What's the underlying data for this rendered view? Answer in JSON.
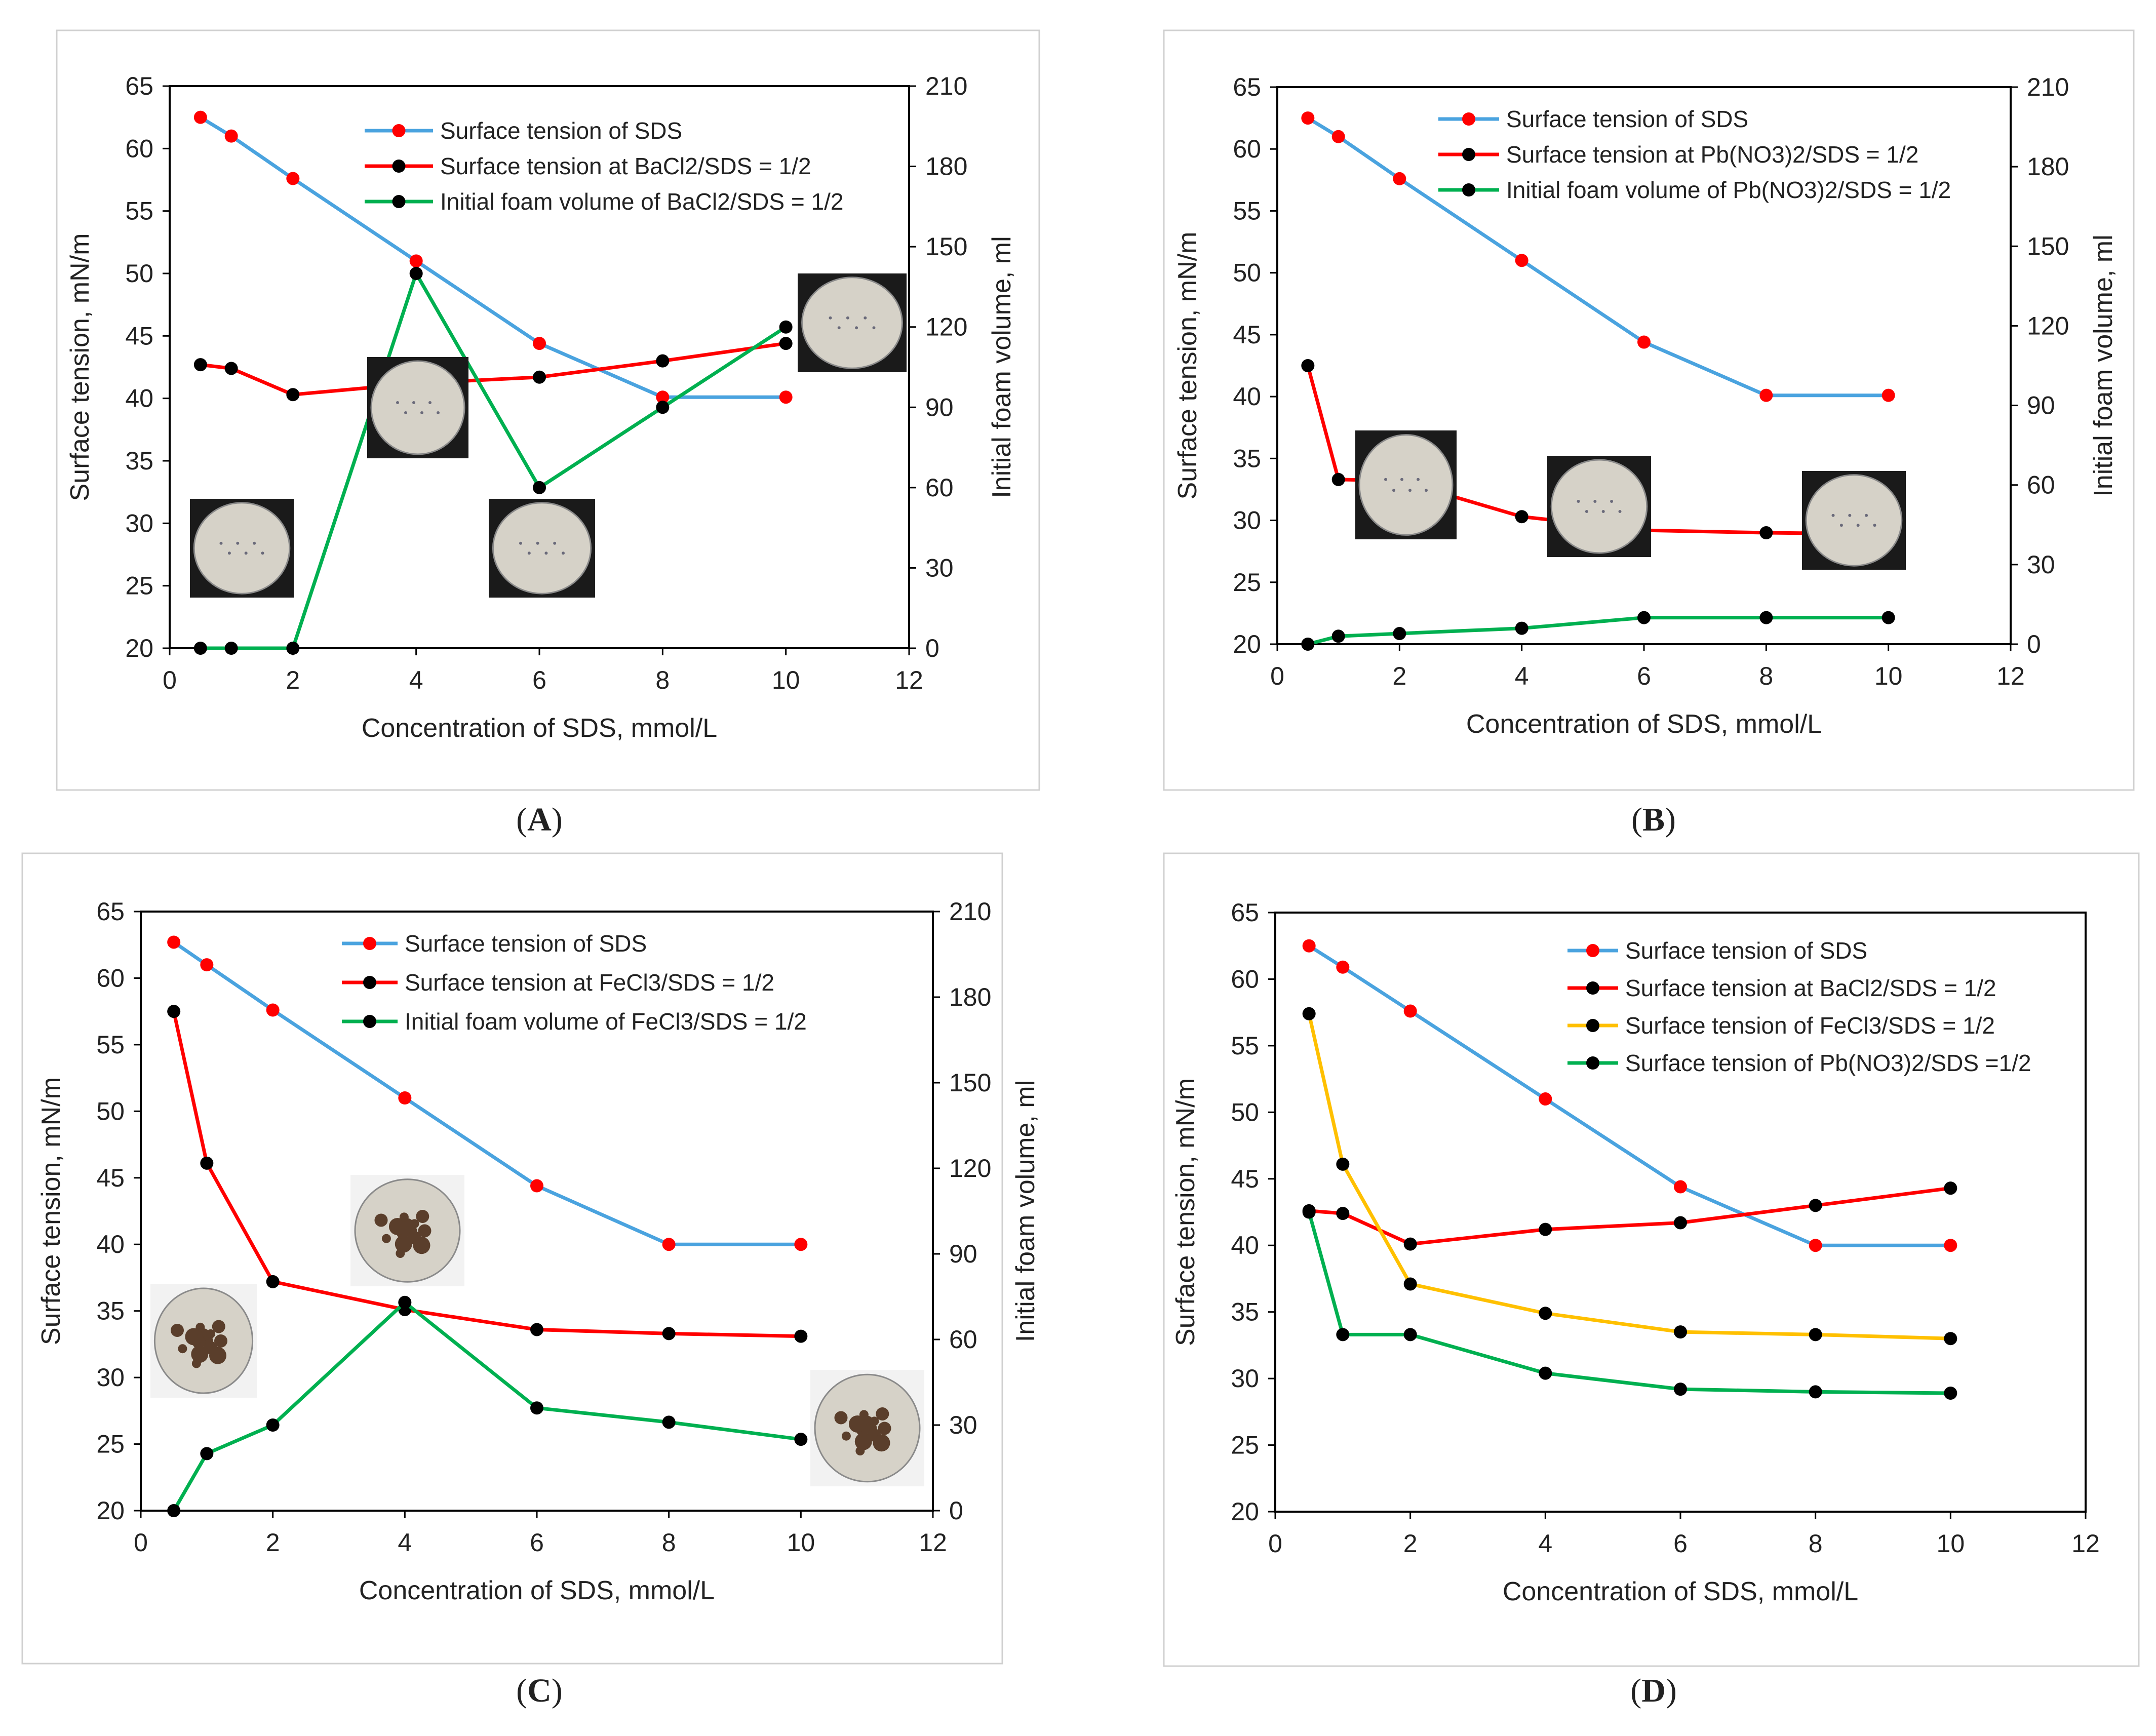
{
  "colors": {
    "blue": "#4aa3df",
    "red": "#ff0000",
    "green": "#00b050",
    "yellow": "#ffc000",
    "black": "#000000",
    "frame": "#d0d0d0"
  },
  "chart_data": [
    {
      "type": "line",
      "panel_label": "A",
      "xlabel": "Concentration of SDS, mmol/L",
      "ylabel": "Surface tension, mN/m",
      "y2label": "Initial foam volume, ml",
      "xlim": [
        0,
        12
      ],
      "ylim": [
        20,
        65
      ],
      "y2lim": [
        0,
        210
      ],
      "xticks": [
        "0",
        "2",
        "4",
        "6",
        "8",
        "10",
        "12"
      ],
      "yticks": [
        "20",
        "25",
        "30",
        "35",
        "40",
        "45",
        "50",
        "55",
        "60",
        "65"
      ],
      "y2ticks": [
        "0",
        "30",
        "60",
        "90",
        "120",
        "150",
        "180",
        "210"
      ],
      "legend_position": "top-center",
      "series": [
        {
          "name": "Surface tension of SDS",
          "axis": "left",
          "line_color": "#4aa3df",
          "marker_color": "#ff0000",
          "x": [
            0.5,
            1,
            2,
            4,
            6,
            8,
            10
          ],
          "y": [
            62.5,
            61.0,
            57.6,
            51.0,
            44.4,
            40.1,
            40.1
          ]
        },
        {
          "name": "Surface tension at BaCl2/SDS = 1/2",
          "axis": "left",
          "line_color": "#ff0000",
          "marker_color": "#000000",
          "x": [
            0.5,
            1,
            2,
            4,
            6,
            8,
            10
          ],
          "y": [
            42.7,
            42.4,
            40.3,
            41.2,
            41.7,
            43.0,
            44.4
          ]
        },
        {
          "name": "Initial foam volume of BaCl2/SDS = 1/2",
          "axis": "right",
          "line_color": "#00b050",
          "marker_color": "#000000",
          "x": [
            0.5,
            1,
            2,
            4,
            6,
            8,
            10
          ],
          "y": [
            0,
            0,
            0,
            140,
            60,
            90,
            120
          ]
        }
      ]
    },
    {
      "type": "line",
      "panel_label": "B",
      "xlabel": "Concentration of SDS, mmol/L",
      "ylabel": "Surface tension, mN/m",
      "y2label": "Initial foam volume, ml",
      "xlim": [
        0,
        12
      ],
      "ylim": [
        20,
        65
      ],
      "y2lim": [
        0,
        210
      ],
      "xticks": [
        "0",
        "2",
        "4",
        "6",
        "8",
        "10",
        "12"
      ],
      "yticks": [
        "20",
        "25",
        "30",
        "35",
        "40",
        "45",
        "50",
        "55",
        "60",
        "65"
      ],
      "y2ticks": [
        "0",
        "30",
        "60",
        "90",
        "120",
        "150",
        "180",
        "210"
      ],
      "legend_position": "top-center",
      "series": [
        {
          "name": "Surface tension of SDS",
          "axis": "left",
          "line_color": "#4aa3df",
          "marker_color": "#ff0000",
          "x": [
            0.5,
            1,
            2,
            4,
            6,
            8,
            10
          ],
          "y": [
            62.5,
            61.0,
            57.6,
            51.0,
            44.4,
            40.1,
            40.1
          ]
        },
        {
          "name": "Surface tension at Pb(NO3)2/SDS = 1/2",
          "axis": "left",
          "line_color": "#ff0000",
          "marker_color": "#000000",
          "x": [
            0.5,
            1,
            2,
            4,
            6,
            8,
            10
          ],
          "y": [
            42.5,
            33.3,
            33.2,
            30.3,
            29.2,
            29.0,
            28.9
          ]
        },
        {
          "name": "Initial foam volume of Pb(NO3)2/SDS = 1/2",
          "axis": "right",
          "line_color": "#00b050",
          "marker_color": "#000000",
          "x": [
            0.5,
            1,
            2,
            4,
            6,
            8,
            10
          ],
          "y": [
            0,
            3,
            4,
            6,
            10,
            10,
            10
          ]
        }
      ]
    },
    {
      "type": "line",
      "panel_label": "C",
      "xlabel": "Concentration of SDS, mmol/L",
      "ylabel": "Surface tension, mN/m",
      "y2label": "Initial foam volume, ml",
      "xlim": [
        0,
        12
      ],
      "ylim": [
        20,
        65
      ],
      "y2lim": [
        0,
        210
      ],
      "xticks": [
        "0",
        "2",
        "4",
        "6",
        "8",
        "10",
        "12"
      ],
      "yticks": [
        "20",
        "25",
        "30",
        "35",
        "40",
        "45",
        "50",
        "55",
        "60",
        "65"
      ],
      "y2ticks": [
        "0",
        "30",
        "60",
        "90",
        "120",
        "150",
        "180",
        "210"
      ],
      "legend_position": "top-center",
      "series": [
        {
          "name": "Surface tension of SDS",
          "axis": "left",
          "line_color": "#4aa3df",
          "marker_color": "#ff0000",
          "x": [
            0.5,
            1,
            2,
            4,
            6,
            8,
            10
          ],
          "y": [
            62.7,
            61.0,
            57.6,
            51.0,
            44.4,
            40.0,
            40.0
          ]
        },
        {
          "name": "Surface tension at FeCl3/SDS = 1/2",
          "axis": "left",
          "line_color": "#ff0000",
          "marker_color": "#000000",
          "x": [
            0.5,
            1,
            2,
            4,
            6,
            8,
            10
          ],
          "y": [
            57.5,
            46.1,
            37.2,
            35.1,
            33.6,
            33.3,
            33.1
          ]
        },
        {
          "name": "Initial foam volume of FeCl3/SDS = 1/2",
          "axis": "right",
          "line_color": "#00b050",
          "marker_color": "#000000",
          "x": [
            0.5,
            1,
            2,
            4,
            6,
            8,
            10
          ],
          "y": [
            0,
            20,
            30,
            73,
            36,
            31,
            25
          ]
        }
      ]
    },
    {
      "type": "line",
      "panel_label": "D",
      "xlabel": "Concentration of SDS, mmol/L",
      "ylabel": "Surface tension, mN/m",
      "xlim": [
        0,
        12
      ],
      "ylim": [
        20,
        65
      ],
      "xticks": [
        "0",
        "2",
        "4",
        "6",
        "8",
        "10",
        "12"
      ],
      "yticks": [
        "20",
        "25",
        "30",
        "35",
        "40",
        "45",
        "50",
        "55",
        "60",
        "65"
      ],
      "legend_position": "top-center",
      "series": [
        {
          "name": "Surface tension of SDS",
          "axis": "left",
          "line_color": "#4aa3df",
          "marker_color": "#ff0000",
          "x": [
            0.5,
            1,
            2,
            4,
            6,
            8,
            10
          ],
          "y": [
            62.5,
            60.9,
            57.6,
            51.0,
            44.4,
            40.0,
            40.0
          ]
        },
        {
          "name": "Surface tension at BaCl2/SDS = 1/2",
          "axis": "left",
          "line_color": "#ff0000",
          "marker_color": "#000000",
          "x": [
            0.5,
            1,
            2,
            4,
            6,
            8,
            10
          ],
          "y": [
            42.6,
            42.4,
            40.1,
            41.2,
            41.7,
            43.0,
            44.3
          ]
        },
        {
          "name": "Surface tension of FeCl3/SDS = 1/2",
          "axis": "left",
          "line_color": "#ffc000",
          "marker_color": "#000000",
          "x": [
            0.5,
            1,
            2,
            4,
            6,
            8,
            10
          ],
          "y": [
            57.4,
            46.1,
            37.1,
            34.9,
            33.5,
            33.3,
            33.0
          ]
        },
        {
          "name": "Surface tension of Pb(NO3)2/SDS =1/2",
          "axis": "left",
          "line_color": "#00b050",
          "marker_color": "#000000",
          "x": [
            0.5,
            1,
            2,
            4,
            6,
            8,
            10
          ],
          "y": [
            42.5,
            33.3,
            33.3,
            30.4,
            29.2,
            29.0,
            28.9
          ]
        }
      ]
    }
  ]
}
